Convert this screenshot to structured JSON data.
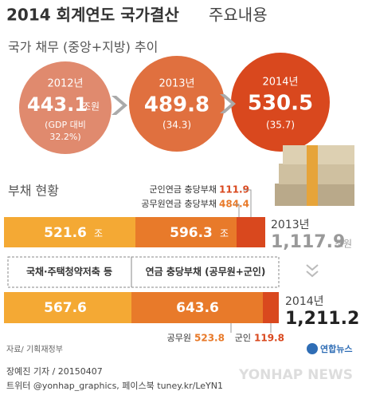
{
  "header": {
    "title": "2014 회계연도 국가결산",
    "title_suffix": "주요내용",
    "subtitle": "국가 채무 (중앙+지방) 추이"
  },
  "circles": [
    {
      "year": "2012년",
      "amount": "443.1",
      "unit": "조원",
      "note": [
        "(GDP 대비",
        "32.2%)"
      ]
    },
    {
      "year": "2013년",
      "amount": "489.8",
      "note": [
        "(34.3)"
      ]
    },
    {
      "year": "2014년",
      "amount": "530.5",
      "note": [
        "(35.7)"
      ]
    }
  ],
  "debt": {
    "title": "부채 현황",
    "legend": [
      {
        "label": "군인연금 충당부채",
        "value": "111.9"
      },
      {
        "label": "공무원연금 충당부채",
        "value": "484.4"
      }
    ],
    "bar2013": {
      "bonds": "521.6",
      "pension": "596.3",
      "unit": "조",
      "year": "2013년",
      "total": "1,117.9",
      "total_unit": "조원"
    },
    "categories": [
      "국채·주택청약저축 등",
      "연금 충당부채 (공무원+군인)"
    ],
    "bar2014": {
      "bonds": "567.6",
      "pension": "643.6",
      "year": "2014년",
      "total": "1,211.2",
      "parts": [
        {
          "label": "공무원",
          "value": "523.8"
        },
        {
          "label": "군인",
          "value": "119.8"
        }
      ]
    }
  },
  "source": "자료/ 기획재정부",
  "logo": "연합뉴스",
  "footer": {
    "byline": "장예진 기자 / 20150407",
    "social": "트위터 @yonhap_graphics, 페이스북 tuney.kr/LeYN1",
    "watermark": "YONHAP NEWS"
  }
}
